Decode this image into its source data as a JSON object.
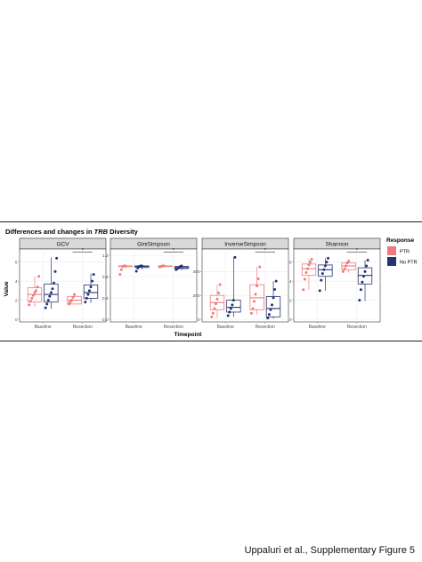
{
  "figure": {
    "title_prefix": "Differences and changes in ",
    "title_italic": "TRB",
    "title_suffix": " Diversity",
    "xlabel": "Timepoint",
    "ylabel": "Value",
    "caption": "Uppaluri et al., Supplementary Figure 5"
  },
  "legend": {
    "title": "Response",
    "items": [
      {
        "label": "PTR",
        "color": "#f07a7a"
      },
      {
        "label": "No PTR",
        "color": "#273272"
      }
    ]
  },
  "colors": {
    "ptr": "#f07a7a",
    "noptr": "#273272",
    "strip": "#d9d9d9",
    "grid": "#ebebeb"
  },
  "chart_data": [
    {
      "type": "box",
      "facet": "GCV",
      "categories": [
        "Baseline",
        "Resection"
      ],
      "ylim": [
        0,
        7
      ],
      "yticks": [
        0,
        2,
        4,
        6
      ],
      "significance": {
        "group": "Resection",
        "label": "*"
      },
      "series": [
        {
          "name": "PTR",
          "boxes": [
            {
              "q1": 1.8,
              "median": 2.6,
              "q3": 3.3,
              "min": 1.3,
              "max": 4.5,
              "points": [
                1.5,
                1.9,
                2.2,
                2.5,
                2.8,
                3.0,
                3.4,
                4.5
              ]
            },
            {
              "q1": 1.6,
              "median": 2.0,
              "q3": 2.4,
              "min": 1.5,
              "max": 2.7,
              "points": [
                1.6,
                1.8,
                2.0,
                2.3,
                2.6
              ]
            }
          ]
        },
        {
          "name": "No PTR",
          "boxes": [
            {
              "q1": 1.8,
              "median": 2.6,
              "q3": 3.7,
              "min": 1.1,
              "max": 6.5,
              "points": [
                1.2,
                1.6,
                2.0,
                2.4,
                2.8,
                3.2,
                3.8,
                5.0,
                6.4
              ]
            },
            {
              "q1": 2.2,
              "median": 2.8,
              "q3": 3.6,
              "min": 1.7,
              "max": 4.8,
              "points": [
                1.8,
                2.2,
                2.6,
                3.0,
                3.4,
                4.0,
                4.7
              ]
            }
          ]
        }
      ]
    },
    {
      "type": "box",
      "facet": "GiniSimpson",
      "categories": [
        "Baseline",
        "Resection"
      ],
      "ylim": [
        0,
        1.25
      ],
      "yticks": [
        0.0,
        0.4,
        0.8,
        1.2
      ],
      "significance": {
        "group": "Resection",
        "label": "*"
      },
      "series": [
        {
          "name": "PTR",
          "boxes": [
            {
              "q1": 0.99,
              "median": 0.995,
              "q3": 1.0,
              "min": 0.95,
              "max": 1.0,
              "points": [
                0.84,
                0.93,
                0.99,
                1.0,
                1.0
              ]
            },
            {
              "q1": 0.99,
              "median": 0.995,
              "q3": 1.0,
              "min": 0.98,
              "max": 1.0,
              "points": [
                0.98,
                0.99,
                1.0,
                1.0
              ]
            }
          ]
        },
        {
          "name": "No PTR",
          "boxes": [
            {
              "q1": 0.97,
              "median": 0.99,
              "q3": 1.0,
              "min": 0.93,
              "max": 1.0,
              "points": [
                0.9,
                0.96,
                0.99,
                1.0,
                1.0
              ]
            },
            {
              "q1": 0.95,
              "median": 0.97,
              "q3": 0.99,
              "min": 0.92,
              "max": 1.0,
              "points": [
                0.93,
                0.95,
                0.97,
                0.99,
                1.0
              ]
            }
          ]
        }
      ]
    },
    {
      "type": "box",
      "facet": "InverseSimpson",
      "categories": [
        "Baseline",
        "Resection"
      ],
      "ylim": [
        0,
        560
      ],
      "yticks": [
        0,
        200,
        400
      ],
      "significance": {
        "group": "Resection",
        "label": "*"
      },
      "series": [
        {
          "name": "PTR",
          "boxes": [
            {
              "q1": 80,
              "median": 140,
              "q3": 200,
              "min": 10,
              "max": 290,
              "points": [
                20,
                50,
                90,
                130,
                170,
                220,
                290
              ]
            },
            {
              "q1": 80,
              "median": 180,
              "q3": 290,
              "min": 40,
              "max": 440,
              "points": [
                50,
                90,
                150,
                210,
                280,
                340,
                440
              ]
            }
          ]
        },
        {
          "name": "No PTR",
          "boxes": [
            {
              "q1": 60,
              "median": 100,
              "q3": 160,
              "min": 20,
              "max": 520,
              "points": [
                30,
                60,
                90,
                120,
                160,
                520
              ]
            },
            {
              "q1": 20,
              "median": 90,
              "q3": 190,
              "min": 5,
              "max": 320,
              "points": [
                10,
                40,
                80,
                120,
                180,
                250,
                320
              ]
            }
          ]
        }
      ]
    },
    {
      "type": "box",
      "facet": "Shannon",
      "categories": [
        "Baseline",
        "Resection"
      ],
      "ylim": [
        0,
        7
      ],
      "yticks": [
        0,
        2,
        4,
        6
      ],
      "significance": {
        "group": "Resection",
        "label": "*"
      },
      "series": [
        {
          "name": "PTR",
          "boxes": [
            {
              "q1": 4.6,
              "median": 5.3,
              "q3": 5.8,
              "min": 3.1,
              "max": 6.3,
              "points": [
                3.1,
                4.2,
                4.9,
                5.3,
                5.7,
                6.0,
                6.3
              ]
            },
            {
              "q1": 5.2,
              "median": 5.6,
              "q3": 5.9,
              "min": 4.9,
              "max": 6.2,
              "points": [
                5.0,
                5.3,
                5.6,
                5.9,
                6.1
              ]
            }
          ]
        },
        {
          "name": "No PTR",
          "boxes": [
            {
              "q1": 4.5,
              "median": 5.2,
              "q3": 5.7,
              "min": 3.0,
              "max": 6.4,
              "points": [
                3.0,
                4.1,
                4.8,
                5.2,
                5.6,
                6.0,
                6.4
              ]
            },
            {
              "q1": 3.7,
              "median": 4.6,
              "q3": 5.4,
              "min": 1.9,
              "max": 6.2,
              "points": [
                2.0,
                3.1,
                3.9,
                4.5,
                5.0,
                5.6,
                6.2
              ]
            }
          ]
        }
      ]
    }
  ]
}
